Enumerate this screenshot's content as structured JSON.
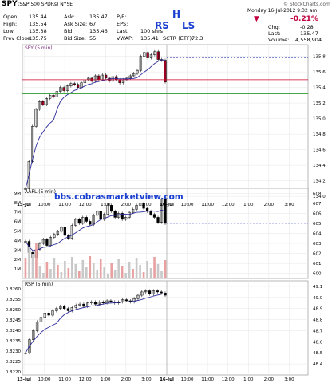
{
  "header": {
    "symbol": "SPY",
    "name": "(S&P 500 SPDRs) NYSE",
    "logo": "© StockCharts.com",
    "date": "Monday 16-Jul-2012  9:32 am",
    "change_pct": "-0.21%",
    "chg_label": "Chg:",
    "chg_value": "-0.28",
    "last_label": "Last:",
    "last_value": "135.47",
    "volume_label": "Volume:",
    "volume_value": "4,558,904",
    "quote": [
      {
        "label": "Open:",
        "value": "135.44"
      },
      {
        "label": "High:",
        "value": "135.54"
      },
      {
        "label": "Low:",
        "value": "135.38"
      },
      {
        "label": "Prev Close:",
        "value": "135.75"
      }
    ],
    "quote2": [
      {
        "label": "Ask:",
        "value": "135.47"
      },
      {
        "label": "Ask Size:",
        "value": "67"
      },
      {
        "label": "Bid:",
        "value": "135.46"
      },
      {
        "label": "Bid Size:",
        "value": "55"
      }
    ],
    "quote3": [
      {
        "label": "P/E:",
        "value": ""
      },
      {
        "label": "EPS:",
        "value": ""
      },
      {
        "label": "Last:",
        "value": "100 shrs"
      },
      {
        "label": "VWAP:",
        "value": "135.41"
      }
    ],
    "sctr_label": "SCTR (ETF):",
    "sctr_value": "72.3",
    "annotation_rs": "RS",
    "annotation_h": "H",
    "annotation_ls": "LS",
    "colors": {
      "accent": "#1a3fd0",
      "down": "#c0003c"
    }
  },
  "chart_data": [
    {
      "type": "line",
      "panel": "price",
      "title": "SPY (5 min)",
      "watermark": "bbs.cobrasmarketview.com",
      "ylim": [
        133.95,
        135.95
      ],
      "yticks": [
        134.0,
        134.2,
        134.4,
        134.6,
        134.8,
        135.0,
        135.2,
        135.4,
        135.6,
        135.8
      ],
      "x_ticks": [
        "13-Jul",
        "10:00",
        "11:00",
        "12:00",
        "1:00",
        "2:00",
        "3:00",
        "16-Jul",
        "10:00",
        "11:00",
        "12:00",
        "1:00",
        "2:00",
        "3:00"
      ],
      "series": [
        {
          "name": "price",
          "values": [
            134.1,
            134.45,
            134.9,
            135.12,
            135.22,
            135.18,
            135.26,
            135.3,
            135.28,
            135.35,
            135.4,
            135.36,
            135.42,
            135.45,
            135.44,
            135.4,
            135.46,
            135.5,
            135.52,
            135.48,
            135.55,
            135.5,
            135.56,
            135.52,
            135.48,
            135.54,
            135.5,
            135.46,
            135.5,
            135.52,
            135.55,
            135.58,
            135.62,
            135.8,
            135.85,
            135.78,
            135.82,
            135.86,
            135.76,
            135.75,
            135.47
          ]
        }
      ],
      "hlines": {
        "red": 135.5,
        "green": 135.32,
        "dashed": 135.78
      }
    },
    {
      "type": "bar",
      "panel": "aapl",
      "title": "AAPL (5 min)",
      "ylim": [
        599.5,
        608.5
      ],
      "yticks": [
        600,
        601,
        602,
        603,
        604,
        605,
        606,
        607,
        608
      ],
      "volume_ticks": [
        "1M",
        "2M",
        "3M",
        "4M",
        "5M",
        "6M",
        "7M",
        "8M",
        "9M"
      ],
      "series": [
        {
          "name": "price",
          "values": [
            603.2,
            602.1,
            601.6,
            602.4,
            603.0,
            603.4,
            602.8,
            603.6,
            603.9,
            604.2,
            604.6,
            603.8,
            603.5,
            604.8,
            605.4,
            605.0,
            605.6,
            605.2,
            604.9,
            605.8,
            606.2,
            605.4,
            605.9,
            606.8,
            606.2,
            605.6,
            606.0,
            605.4,
            605.6,
            606.1,
            606.4,
            606.8,
            607.0,
            606.5,
            606.2,
            605.9,
            605.6,
            605.1,
            607.4,
            605.0
          ]
        }
      ],
      "hlines": {
        "dashed": 605.0
      }
    },
    {
      "type": "line",
      "panel": "rsp",
      "title": "RSP (5 min)",
      "ylim": [
        48.3,
        49.15
      ],
      "yticks": [
        48.4,
        48.5,
        48.6,
        48.7,
        48.8,
        48.9,
        49.0,
        49.1
      ],
      "left_ticks": [
        "0.8220",
        "0.8225",
        "0.8230",
        "0.8235",
        "0.8240",
        "0.8245",
        "0.8250",
        "0.8255",
        "0.8260"
      ],
      "series": [
        {
          "name": "price",
          "values": [
            48.5,
            48.62,
            48.7,
            48.78,
            48.82,
            48.86,
            48.84,
            48.88,
            48.9,
            48.92,
            48.9,
            48.88,
            48.91,
            48.93,
            48.94,
            48.92,
            48.95,
            48.96,
            48.94,
            48.96,
            48.95,
            48.97,
            48.96,
            48.95,
            48.96,
            48.98,
            48.97,
            48.96,
            48.99,
            49.02,
            49.05,
            49.06,
            49.03,
            49.06,
            49.05,
            49.04,
            49.02
          ]
        }
      ],
      "hlines": {
        "dashed": 48.96
      }
    }
  ]
}
